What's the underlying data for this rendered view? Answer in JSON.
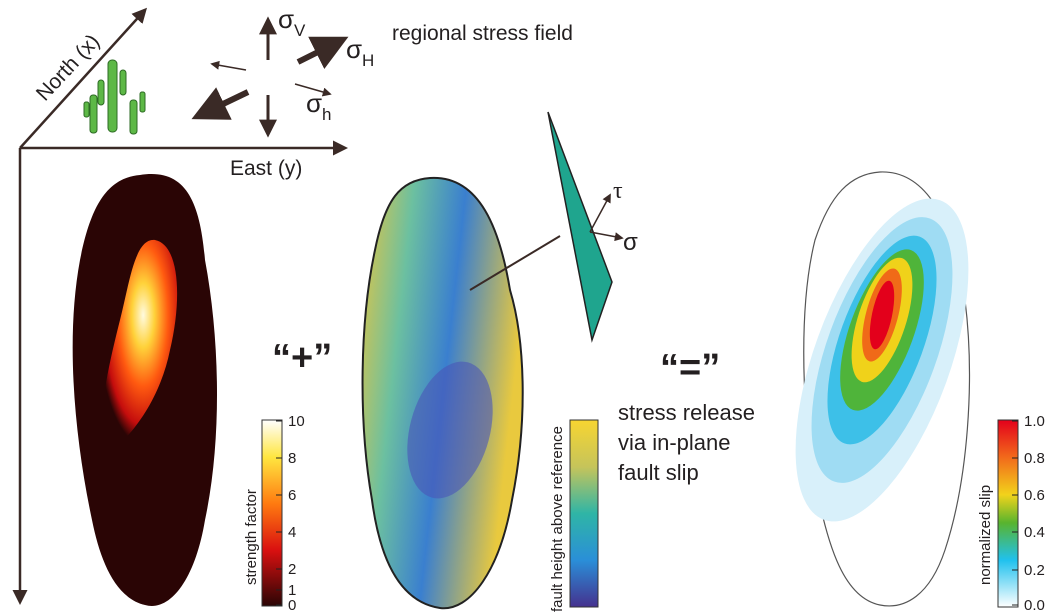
{
  "axes": {
    "north": "North (x)",
    "east": "East (y)"
  },
  "stress": {
    "title": "regional stress field",
    "sigma_v": {
      "symbol": "σ",
      "subscript": "V"
    },
    "sigma_H": {
      "symbol": "σ",
      "subscript": "H"
    },
    "sigma_h": {
      "symbol": "σ",
      "subscript": "h"
    }
  },
  "operators": {
    "plus": "“+”",
    "equals": "“=”"
  },
  "fault": {
    "tau": "τ",
    "sigma": "σ"
  },
  "result": {
    "lines": [
      "stress release",
      "via in-plane",
      "fault slip"
    ]
  },
  "colorbars": [
    {
      "label": "strength factor",
      "ticks": [
        "10",
        "8",
        "6",
        "4",
        "2",
        "1",
        "0"
      ]
    },
    {
      "label": "fault height above reference"
    },
    {
      "label": "normalized slip",
      "ticks": [
        "1.0",
        "0.8",
        "0.6",
        "0.4",
        "0.2",
        "0.0"
      ]
    }
  ]
}
